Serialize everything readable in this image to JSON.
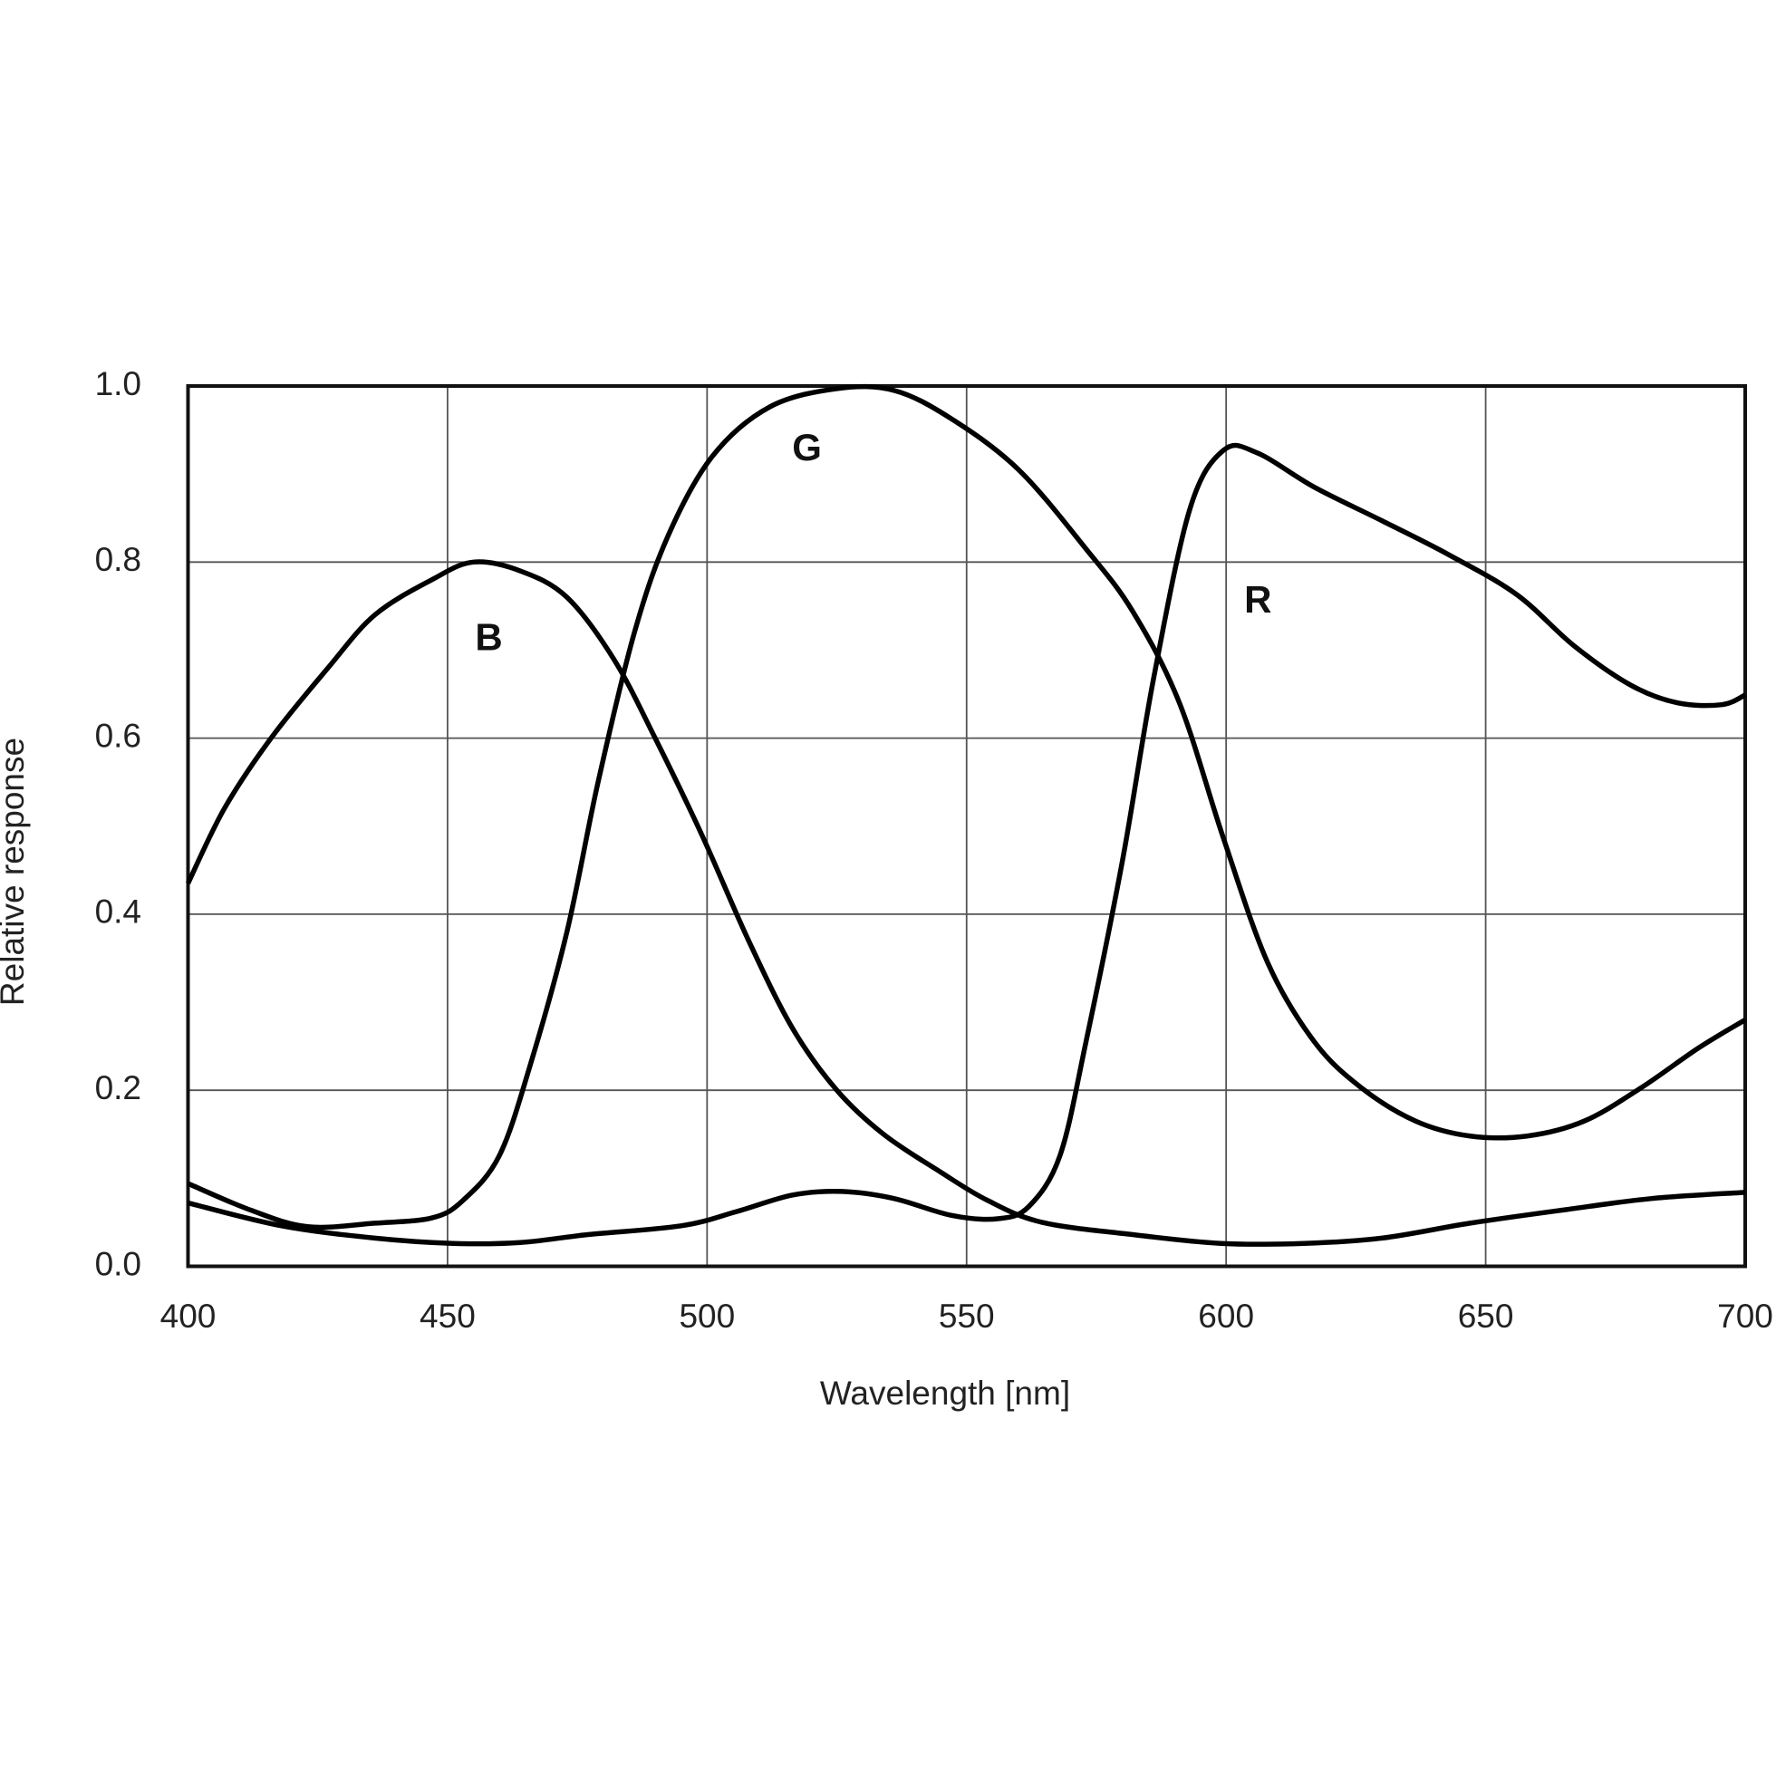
{
  "chart_data": {
    "type": "line",
    "x_label": "Wavelength [nm]",
    "y_label": "Relative response",
    "xlim": [
      400,
      700
    ],
    "xticks": [
      400,
      450,
      500,
      550,
      600,
      650,
      700
    ],
    "ylim": [
      0,
      1
    ],
    "yticks": [
      {
        "value": 0,
        "label": "0.0"
      },
      0.2,
      0.4,
      0.6,
      0.8,
      {
        "value": 1,
        "label": "1.0"
      }
    ],
    "grid": true,
    "series": [
      {
        "name": "B",
        "color": "#000000",
        "x": [
          400,
          407,
          416,
          427,
          436,
          447,
          455,
          464,
          473,
          482,
          490,
          499,
          508,
          516.5,
          525,
          534,
          545,
          554,
          564.5,
          582,
          599,
          615,
          630,
          647,
          665,
          682,
          700
        ],
        "values": [
          0.435,
          0.52,
          0.6,
          0.68,
          0.74,
          0.78,
          0.8,
          0.79,
          0.76,
          0.69,
          0.6,
          0.49,
          0.37,
          0.27,
          0.2,
          0.15,
          0.107,
          0.075,
          0.05,
          0.036,
          0.026,
          0.026,
          0.032,
          0.049,
          0.064,
          0.077,
          0.084
        ]
      },
      {
        "name": "G",
        "color": "#000000",
        "x": [
          400,
          412,
          423,
          436,
          447,
          453,
          460,
          466,
          473,
          479,
          486,
          492.5,
          501,
          512,
          525,
          536,
          547,
          560,
          573,
          582,
          591,
          599.5,
          608,
          617,
          626,
          636.5,
          647,
          658,
          669,
          680,
          691,
          700
        ],
        "values": [
          0.094,
          0.064,
          0.045,
          0.049,
          0.055,
          0.075,
          0.126,
          0.23,
          0.38,
          0.55,
          0.72,
          0.83,
          0.92,
          0.976,
          0.997,
          0.995,
          0.963,
          0.905,
          0.815,
          0.744,
          0.64,
          0.486,
          0.345,
          0.255,
          0.203,
          0.165,
          0.148,
          0.148,
          0.165,
          0.203,
          0.248,
          0.28
        ]
      },
      {
        "name": "R",
        "color": "#000000",
        "x": [
          400,
          418,
          436,
          451,
          464,
          477,
          495,
          505.6,
          516.5,
          526,
          536,
          547,
          556,
          562,
          568,
          573,
          580,
          586,
          593,
          599.5,
          606,
          617,
          630,
          643,
          656,
          667,
          678,
          687,
          695.5,
          700
        ],
        "values": [
          0.072,
          0.046,
          0.032,
          0.026,
          0.027,
          0.036,
          0.046,
          0.062,
          0.081,
          0.085,
          0.077,
          0.058,
          0.054,
          0.068,
          0.126,
          0.255,
          0.46,
          0.667,
          0.86,
          0.927,
          0.924,
          0.885,
          0.847,
          0.808,
          0.763,
          0.705,
          0.66,
          0.64,
          0.638,
          0.649
        ]
      }
    ]
  }
}
